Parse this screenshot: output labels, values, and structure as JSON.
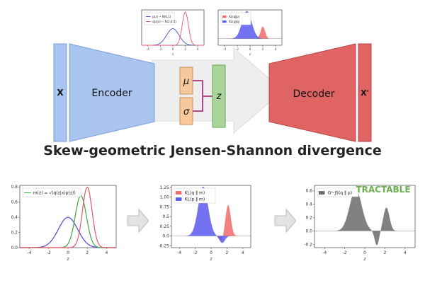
{
  "diagram": {
    "x_label": "X",
    "encoder_label": "Encoder",
    "mu_label": "μ",
    "sigma_label": "σ",
    "z_label": "z",
    "decoder_label": "Decoder",
    "xprime_label": "X'",
    "title": "Skew-geometric Jensen-Shannon divergence",
    "tractable_label": "TRACTABLE"
  },
  "colors": {
    "encoder": "#a8c4ef",
    "decoder": "#e06464",
    "mu_sigma": "#f6c89b",
    "z_box": "#a9d59a",
    "connector": "#b0488a",
    "arrow": "#eeeeee",
    "tractable": "#6ab04c"
  },
  "chart_data": [
    {
      "id": "top-left-inset",
      "type": "line",
      "xlabel": "z",
      "xticks": [
        -4,
        -2,
        0,
        2,
        4
      ],
      "yticks": [],
      "xlim": [
        -5,
        5
      ],
      "ylim": [
        0,
        0.85
      ],
      "legend": [
        "p(z) ~ N(0,1)",
        "q(z|x) ~ N(2,0.5)"
      ],
      "legend_position": "top-left",
      "series": [
        {
          "name": "p(z) ~ N(0,1)",
          "color": "#4b4bd0",
          "kind": "gaussian",
          "mu": 0,
          "sigma": 1
        },
        {
          "name": "q(z|x) ~ N(2,0.5)",
          "color": "#e8566a",
          "kind": "gaussian",
          "mu": 2,
          "sigma": 0.5
        }
      ]
    },
    {
      "id": "top-right-inset",
      "type": "area",
      "xlabel": "z",
      "xticks": [
        -4,
        -2,
        0,
        2,
        4
      ],
      "yticks": [],
      "xlim": [
        -5,
        5
      ],
      "ylim": [
        -0.3,
        1.3
      ],
      "legend": [
        "KL(q‖p)",
        "KL(p‖q)"
      ],
      "legend_position": "top-left",
      "series": [
        {
          "name": "KL(q‖p)",
          "color": "#f26b6b",
          "kind": "gaussian",
          "mu": 2,
          "sigma": 0.35,
          "scale": 0.55
        },
        {
          "name": "KL(p‖q)",
          "color": "#5b5bf0",
          "kind": "gaussian",
          "mu": -0.5,
          "sigma": 0.75,
          "scale": 1.25
        }
      ]
    },
    {
      "id": "bottom-left",
      "type": "line",
      "xlabel": "z",
      "xticks": [
        -4,
        -2,
        0,
        2,
        4
      ],
      "yticks": [
        0.0,
        0.2,
        0.4,
        0.6,
        0.8
      ],
      "xlim": [
        -5,
        5
      ],
      "ylim": [
        0,
        0.82
      ],
      "legend": [
        "m(z) = √(q(z|x)p(z))"
      ],
      "legend_position": "top-left",
      "series": [
        {
          "name": "p(z)",
          "color": "#4b4bd0",
          "kind": "gaussian",
          "mu": 0,
          "sigma": 1
        },
        {
          "name": "m(z) = √(q(z|x)p(z))",
          "color": "#3aa843",
          "kind": "gaussian",
          "mu": 1.33,
          "sigma": 0.58
        },
        {
          "name": "q(z|x)",
          "color": "#e8566a",
          "kind": "gaussian",
          "mu": 2,
          "sigma": 0.5
        }
      ]
    },
    {
      "id": "bottom-middle",
      "type": "area",
      "xlabel": "z",
      "xticks": [
        -4,
        -2,
        0,
        2,
        4
      ],
      "yticks": [
        -0.25,
        0.0,
        0.25,
        0.5,
        0.75,
        1.0,
        1.25
      ],
      "xlim": [
        -5,
        5
      ],
      "ylim": [
        -0.3,
        1.3
      ],
      "legend": [
        "KL(q ‖ m)",
        "KL(p ‖ m)"
      ],
      "legend_position": "top-left",
      "series": [
        {
          "name": "KL(q ‖ m)",
          "color": "#f26b6b",
          "kind": "gaussian",
          "mu": 2.15,
          "sigma": 0.33,
          "scale": 0.8,
          "neg_mu": 1.3,
          "neg_sigma": 0.25,
          "neg_scale": 0.15
        },
        {
          "name": "KL(p ‖ m)",
          "color": "#5b5bf0",
          "kind": "gaussian",
          "mu": -1.0,
          "sigma": 0.62,
          "scale": 1.27,
          "neg_mu": 1.4,
          "neg_sigma": 0.35,
          "neg_scale": 0.18
        }
      ]
    },
    {
      "id": "bottom-right",
      "type": "area",
      "xlabel": "z",
      "xticks": [
        -4,
        -2,
        0,
        2,
        4
      ],
      "yticks": [
        -0.2,
        0.0,
        0.2,
        0.4,
        0.6
      ],
      "xlim": [
        -5,
        5
      ],
      "ylim": [
        -0.25,
        0.68
      ],
      "legend": [
        "Gᵅ-JS(q ‖ p)"
      ],
      "legend_position": "top-left",
      "series": [
        {
          "name": "Gᵅ-JS(q ‖ p)",
          "color": "#6b6b6b",
          "kind": "mixture",
          "components": [
            {
              "mu": -0.9,
              "sigma": 0.6,
              "scale": 0.62
            },
            {
              "mu": 1.2,
              "sigma": 0.22,
              "scale": -0.22
            },
            {
              "mu": 2.15,
              "sigma": 0.3,
              "scale": 0.35
            }
          ]
        }
      ]
    }
  ]
}
